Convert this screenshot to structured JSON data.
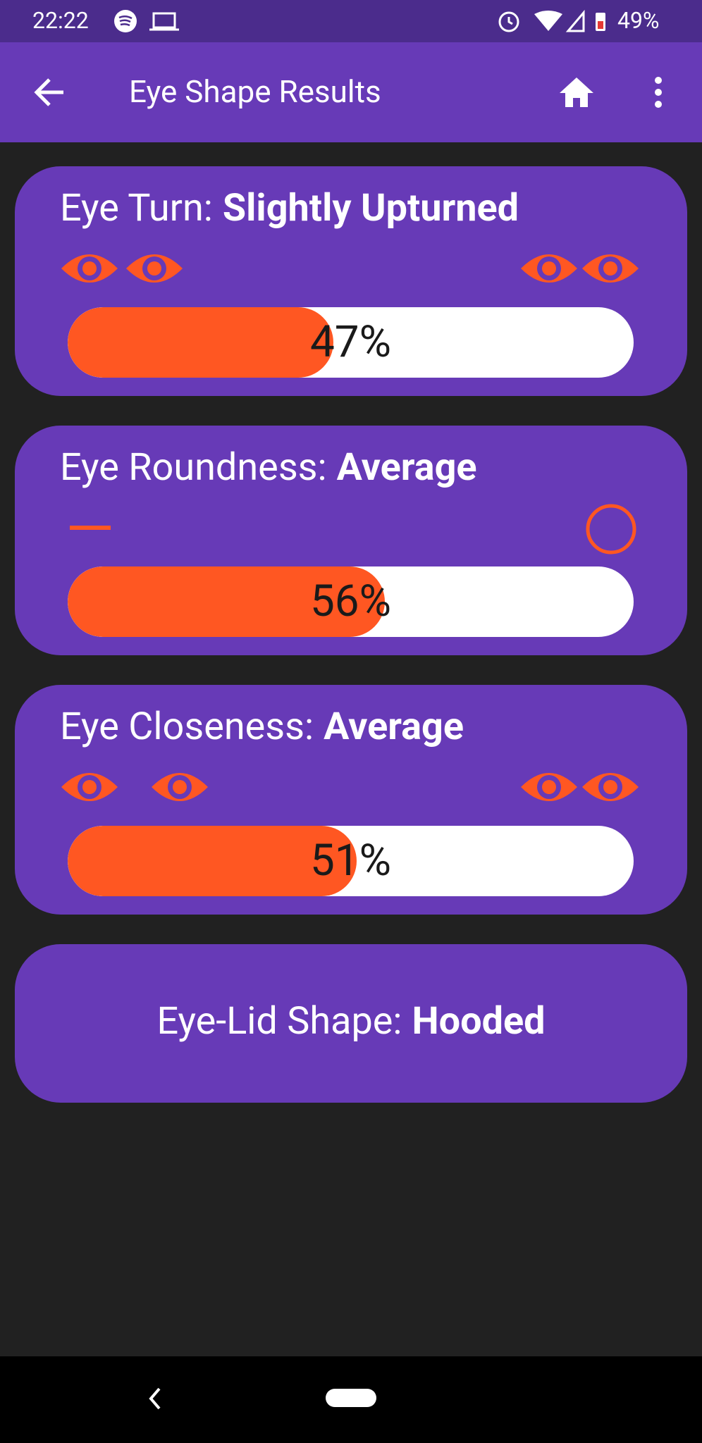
{
  "status_bar": {
    "time": "22:22",
    "battery": "49%"
  },
  "app_bar": {
    "title": "Eye Shape Results"
  },
  "cards": [
    {
      "label": "Eye Turn:",
      "value": "Slightly Upturned",
      "percent": {
        "value": 47,
        "label": "47%"
      }
    },
    {
      "label": "Eye Roundness:",
      "value": "Average",
      "percent": {
        "value": 56,
        "label": "56%"
      }
    },
    {
      "label": "Eye Closeness:",
      "value": "Average",
      "percent": {
        "value": 51,
        "label": "51%"
      }
    },
    {
      "label": "Eye-Lid Shape:",
      "value": "Hooded"
    }
  ]
}
